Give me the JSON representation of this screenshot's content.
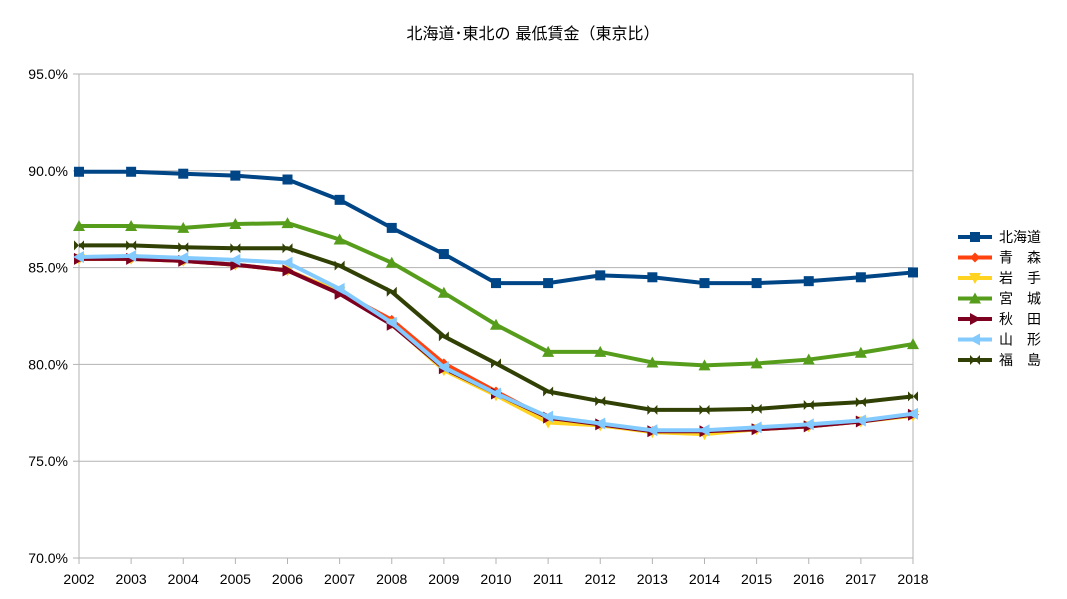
{
  "chart_data": {
    "type": "line",
    "title": "北海道･東北の 最低賃金（東京比）",
    "xlabel": "",
    "ylabel": "",
    "x": [
      "2002",
      "2003",
      "2004",
      "2005",
      "2006",
      "2007",
      "2008",
      "2009",
      "2010",
      "2011",
      "2012",
      "2013",
      "2014",
      "2015",
      "2016",
      "2017",
      "2018"
    ],
    "ylim": [
      0.7,
      0.95
    ],
    "yticks": [
      "95.0%",
      "90.0%",
      "85.0%",
      "80.0%",
      "75.0%",
      "70.0%"
    ],
    "grid": true,
    "legend_position": "right",
    "series": [
      {
        "name": "北海道",
        "color": "#004586",
        "marker": "square",
        "values": [
          0.8995,
          0.8995,
          0.8985,
          0.8975,
          0.8955,
          0.885,
          0.8705,
          0.857,
          0.842,
          0.842,
          0.846,
          0.845,
          0.842,
          0.842,
          0.843,
          0.845,
          0.8475
        ]
      },
      {
        "name": "青　森",
        "color": "#ff420e",
        "marker": "diamond",
        "values": [
          0.8545,
          0.8545,
          0.8535,
          0.8515,
          0.8485,
          0.8375,
          0.823,
          0.8005,
          0.786,
          0.772,
          0.7685,
          0.7655,
          0.7645,
          0.7665,
          0.768,
          0.7705,
          0.774
        ]
      },
      {
        "name": "岩　手",
        "color": "#ffd320",
        "marker": "triangle-down",
        "values": [
          0.8545,
          0.8545,
          0.8535,
          0.8515,
          0.8485,
          0.8375,
          0.821,
          0.797,
          0.784,
          0.77,
          0.7685,
          0.765,
          0.764,
          0.7665,
          0.768,
          0.7705,
          0.7735
        ]
      },
      {
        "name": "宮　城",
        "color": "#579d1c",
        "marker": "triangle-up",
        "values": [
          0.8715,
          0.8715,
          0.8705,
          0.8725,
          0.873,
          0.8645,
          0.8525,
          0.837,
          0.8205,
          0.8065,
          0.8065,
          0.801,
          0.7995,
          0.8005,
          0.8025,
          0.806,
          0.8105
        ]
      },
      {
        "name": "秋　田",
        "color": "#7e0021",
        "marker": "triangle-right",
        "values": [
          0.8545,
          0.8545,
          0.8535,
          0.8515,
          0.8485,
          0.8365,
          0.8205,
          0.798,
          0.785,
          0.7725,
          0.769,
          0.7655,
          0.7655,
          0.7665,
          0.768,
          0.7705,
          0.774
        ]
      },
      {
        "name": "山　形",
        "color": "#83caff",
        "marker": "triangle-left",
        "values": [
          0.8555,
          0.856,
          0.855,
          0.854,
          0.8525,
          0.839,
          0.8215,
          0.7985,
          0.785,
          0.773,
          0.7695,
          0.766,
          0.766,
          0.7675,
          0.769,
          0.771,
          0.7745
        ]
      },
      {
        "name": "福　島",
        "color": "#314004",
        "marker": "bowtie",
        "values": [
          0.8615,
          0.8615,
          0.8605,
          0.86,
          0.86,
          0.851,
          0.8375,
          0.8145,
          0.8005,
          0.786,
          0.781,
          0.7765,
          0.7765,
          0.777,
          0.779,
          0.7805,
          0.7835
        ]
      }
    ]
  }
}
